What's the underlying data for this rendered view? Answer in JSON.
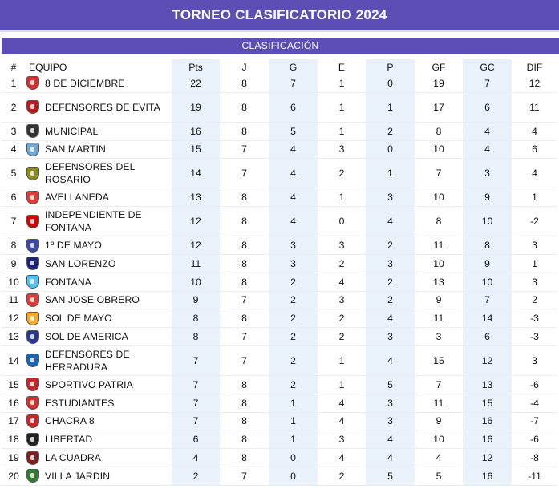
{
  "title": "TORNEO CLASIFICATORIO 2024",
  "subtitle": "CLASIFICACIÓN",
  "headers": {
    "pos": "#",
    "team": "EQUIPO",
    "pts": "Pts",
    "j": "J",
    "g": "G",
    "e": "E",
    "p": "P",
    "gf": "GF",
    "gc": "GC",
    "dif": "DIF"
  },
  "rows": [
    {
      "pos": "1",
      "team": "8 DE DICIEMBRE",
      "pts": "22",
      "j": "8",
      "g": "7",
      "e": "1",
      "p": "0",
      "gf": "19",
      "gc": "7",
      "dif": "12",
      "crest_color": "#d32f2f"
    },
    {
      "pos": "2",
      "team": "DEFENSORES DE EVITA",
      "pts": "19",
      "j": "8",
      "g": "6",
      "e": "1",
      "p": "1",
      "gf": "17",
      "gc": "6",
      "dif": "11",
      "crest_color": "#b71c1c"
    },
    {
      "pos": "3",
      "team": "MUNICIPAL",
      "pts": "16",
      "j": "8",
      "g": "5",
      "e": "1",
      "p": "2",
      "gf": "8",
      "gc": "4",
      "dif": "4",
      "crest_color": "#333333"
    },
    {
      "pos": "4",
      "team": "SAN MARTIN",
      "pts": "15",
      "j": "7",
      "g": "4",
      "e": "3",
      "p": "0",
      "gf": "10",
      "gc": "4",
      "dif": "6",
      "crest_color": "#6aa8d8"
    },
    {
      "pos": "5",
      "team": "DEFENSORES DEL ROSARIO",
      "pts": "14",
      "j": "7",
      "g": "4",
      "e": "2",
      "p": "1",
      "gf": "7",
      "gc": "3",
      "dif": "4",
      "crest_color": "#8a8a1c"
    },
    {
      "pos": "6",
      "team": "AVELLANEDA",
      "pts": "13",
      "j": "8",
      "g": "4",
      "e": "1",
      "p": "3",
      "gf": "10",
      "gc": "9",
      "dif": "1",
      "crest_color": "#e53935"
    },
    {
      "pos": "7",
      "team": "INDEPENDIENTE DE FONTANA",
      "pts": "12",
      "j": "8",
      "g": "4",
      "e": "0",
      "p": "4",
      "gf": "8",
      "gc": "10",
      "dif": "-2",
      "crest_color": "#d50000"
    },
    {
      "pos": "8",
      "team": "1º DE MAYO",
      "pts": "12",
      "j": "8",
      "g": "3",
      "e": "3",
      "p": "2",
      "gf": "11",
      "gc": "8",
      "dif": "3",
      "crest_color": "#3949ab"
    },
    {
      "pos": "9",
      "team": "SAN LORENZO",
      "pts": "11",
      "j": "8",
      "g": "3",
      "e": "2",
      "p": "3",
      "gf": "10",
      "gc": "9",
      "dif": "1",
      "crest_color": "#1a237e"
    },
    {
      "pos": "10",
      "team": "FONTANA",
      "pts": "10",
      "j": "8",
      "g": "2",
      "e": "4",
      "p": "2",
      "gf": "13",
      "gc": "10",
      "dif": "3",
      "crest_color": "#4fc3f7"
    },
    {
      "pos": "11",
      "team": "SAN JOSE OBRERO",
      "pts": "9",
      "j": "7",
      "g": "2",
      "e": "3",
      "p": "2",
      "gf": "9",
      "gc": "7",
      "dif": "2",
      "crest_color": "#e53935"
    },
    {
      "pos": "12",
      "team": "SOL DE MAYO",
      "pts": "8",
      "j": "8",
      "g": "2",
      "e": "2",
      "p": "4",
      "gf": "11",
      "gc": "14",
      "dif": "-3",
      "crest_color": "#f9a825"
    },
    {
      "pos": "13",
      "team": "SOL DE AMERICA",
      "pts": "8",
      "j": "7",
      "g": "2",
      "e": "2",
      "p": "3",
      "gf": "3",
      "gc": "6",
      "dif": "-3",
      "crest_color": "#283593"
    },
    {
      "pos": "14",
      "team": "DEFENSORES DE HERRADURA",
      "pts": "7",
      "j": "7",
      "g": "2",
      "e": "1",
      "p": "4",
      "gf": "15",
      "gc": "12",
      "dif": "3",
      "crest_color": "#1565c0"
    },
    {
      "pos": "15",
      "team": "SPORTIVO PATRIA",
      "pts": "7",
      "j": "8",
      "g": "2",
      "e": "1",
      "p": "5",
      "gf": "7",
      "gc": "13",
      "dif": "-6",
      "crest_color": "#c62828"
    },
    {
      "pos": "16",
      "team": "ESTUDIANTES",
      "pts": "7",
      "j": "8",
      "g": "1",
      "e": "4",
      "p": "3",
      "gf": "11",
      "gc": "15",
      "dif": "-4",
      "crest_color": "#d32f2f"
    },
    {
      "pos": "17",
      "team": "CHACRA 8",
      "pts": "7",
      "j": "8",
      "g": "1",
      "e": "4",
      "p": "3",
      "gf": "9",
      "gc": "16",
      "dif": "-7",
      "crest_color": "#c62828"
    },
    {
      "pos": "18",
      "team": "LIBERTAD",
      "pts": "6",
      "j": "8",
      "g": "1",
      "e": "3",
      "p": "4",
      "gf": "10",
      "gc": "16",
      "dif": "-6",
      "crest_color": "#212121"
    },
    {
      "pos": "19",
      "team": "LA CUADRA",
      "pts": "4",
      "j": "8",
      "g": "0",
      "e": "4",
      "p": "4",
      "gf": "4",
      "gc": "12",
      "dif": "-8",
      "crest_color": "#7b1f1f"
    },
    {
      "pos": "20",
      "team": "VILLA JARDIN",
      "pts": "2",
      "j": "7",
      "g": "0",
      "e": "2",
      "p": "5",
      "gf": "5",
      "gc": "16",
      "dif": "-11",
      "crest_color": "#2e7d32"
    }
  ]
}
